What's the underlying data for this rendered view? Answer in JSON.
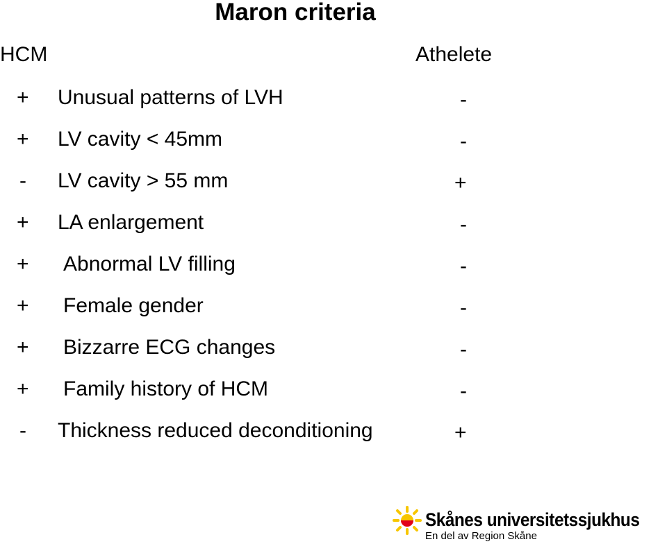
{
  "title": "Maron criteria",
  "header": {
    "hcm": "HCM",
    "athlete": "Athelete"
  },
  "rows": [
    {
      "hcm": "+",
      "criterion": "Unusual patterns of LVH",
      "athlete": "-"
    },
    {
      "hcm": "+",
      "criterion": "LV cavity < 45mm",
      "athlete": "-"
    },
    {
      "hcm": "-",
      "criterion": "LV cavity > 55 mm",
      "athlete": "+"
    },
    {
      "hcm": "+",
      "criterion": "LA enlargement",
      "athlete": "-"
    },
    {
      "hcm": "+",
      "criterion": "Abnormal LV filling",
      "athlete": "-"
    },
    {
      "hcm": "+",
      "criterion": "Female gender",
      "athlete": "-"
    },
    {
      "hcm": "+",
      "criterion": "Bizzarre ECG changes",
      "athlete": "-"
    },
    {
      "hcm": "+",
      "criterion": "Family history of HCM",
      "athlete": "-"
    },
    {
      "hcm": "-",
      "criterion": "Thickness reduced deconditioning",
      "athlete": "+"
    }
  ],
  "logo": {
    "name": "Skånes universitetssjukhus",
    "tagline": "En del av Region Skåne"
  }
}
